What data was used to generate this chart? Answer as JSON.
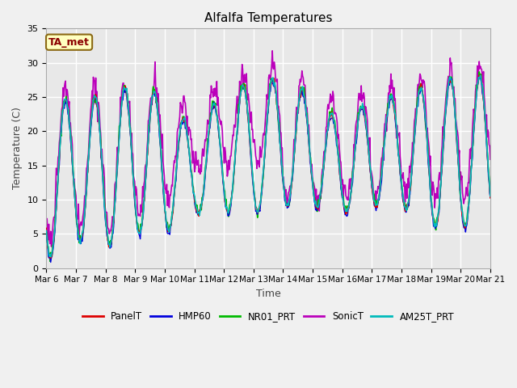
{
  "title": "Alfalfa Temperatures",
  "xlabel": "Time",
  "ylabel": "Temperature (C)",
  "ylim": [
    0,
    35
  ],
  "xlim_days": [
    0,
    15
  ],
  "fig_bg_color": "#f0f0f0",
  "plot_bg_color": "#e8e8e8",
  "grid_color": "#ffffff",
  "annotation_text": "TA_met",
  "annotation_color": "#8b0000",
  "annotation_bg": "#ffffc0",
  "annotation_border": "#8b6914",
  "series": {
    "PanelT": {
      "color": "#dd0000",
      "lw": 1.0,
      "zorder": 5
    },
    "HMP60": {
      "color": "#0000dd",
      "lw": 1.0,
      "zorder": 4
    },
    "NR01_PRT": {
      "color": "#00bb00",
      "lw": 1.2,
      "zorder": 3
    },
    "SonicT": {
      "color": "#bb00bb",
      "lw": 1.2,
      "zorder": 2
    },
    "AM25T_PRT": {
      "color": "#00bbbb",
      "lw": 1.2,
      "zorder": 6
    }
  },
  "xtick_labels": [
    "Mar 6",
    "Mar 7",
    "Mar 8",
    "Mar 9",
    "Mar 10",
    "Mar 11",
    "Mar 12",
    "Mar 13",
    "Mar 14",
    "Mar 15",
    "Mar 16",
    "Mar 17",
    "Mar 18",
    "Mar 19",
    "Mar 20",
    "Mar 21"
  ],
  "xtick_positions": [
    0,
    1,
    2,
    3,
    4,
    5,
    6,
    7,
    8,
    9,
    10,
    11,
    12,
    13,
    14,
    15
  ],
  "ytick_positions": [
    0,
    5,
    10,
    15,
    20,
    25,
    30,
    35
  ],
  "ytick_labels": [
    "0",
    "5",
    "10",
    "15",
    "20",
    "25",
    "30",
    "35"
  ]
}
